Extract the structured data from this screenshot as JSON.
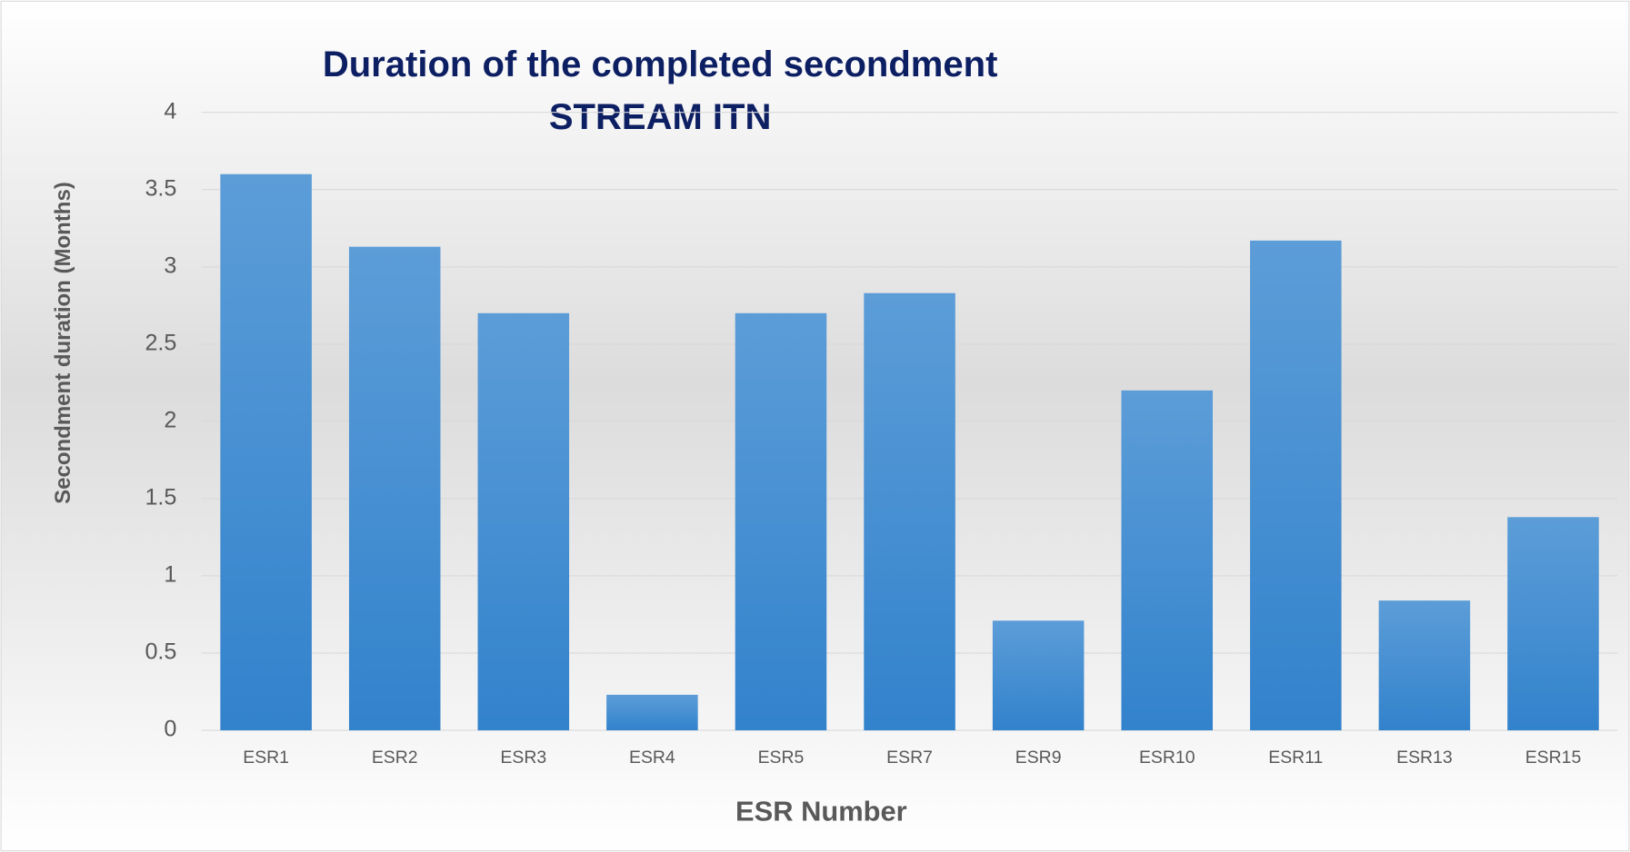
{
  "chart_data": {
    "type": "bar",
    "title": [
      "Duration of the completed secondment",
      "STREAM ITN"
    ],
    "x_label": "ESR Number",
    "y_label": "Secondment duration (Months)",
    "categories": [
      "ESR1",
      "ESR2",
      "ESR3",
      "ESR4",
      "ESR5",
      "ESR7",
      "ESR9",
      "ESR10",
      "ESR11",
      "ESR13",
      "ESR15"
    ],
    "values": [
      3.6,
      3.13,
      2.7,
      0.23,
      2.7,
      2.83,
      0.71,
      2.2,
      3.17,
      0.84,
      1.38
    ],
    "color": "#4a90d6",
    "ylim": [
      0,
      4
    ],
    "yticks": [
      0,
      0.5,
      1,
      1.5,
      2,
      2.5,
      3,
      3.5,
      4
    ],
    "grid": true
  }
}
